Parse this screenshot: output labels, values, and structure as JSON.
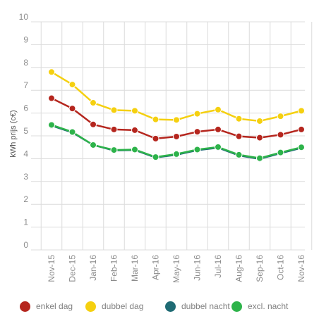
{
  "chart_data": {
    "type": "line",
    "title": "",
    "xlabel": "",
    "ylabel": "kWh prijs (c€)",
    "ylim": [
      0,
      10
    ],
    "yticks": [
      0,
      1,
      2,
      3,
      4,
      5,
      6,
      7,
      8,
      9,
      10
    ],
    "grid": true,
    "legend_position": "bottom",
    "categories": [
      "Nov-15",
      "Dec-15",
      "Jan-16",
      "Feb-16",
      "Mar-16",
      "Apr-16",
      "May-16",
      "Jun-16",
      "Jul-16",
      "Aug-16",
      "Sep-16",
      "Oct-16",
      "Nov-16"
    ],
    "series": [
      {
        "name": "enkel dag",
        "color": "#b5261e",
        "values": [
          6.65,
          6.2,
          5.5,
          5.28,
          5.25,
          4.88,
          4.97,
          5.18,
          5.28,
          4.98,
          4.92,
          5.05,
          5.28
        ]
      },
      {
        "name": "dubbel dag",
        "color": "#f5d010",
        "values": [
          7.8,
          7.25,
          6.45,
          6.13,
          6.1,
          5.72,
          5.7,
          5.97,
          6.15,
          5.75,
          5.65,
          5.86,
          6.1
        ]
      },
      {
        "name": "dubbel nacht",
        "color": "#1f6b74",
        "values": [
          5.45,
          5.15,
          4.6,
          4.36,
          4.38,
          4.05,
          4.17,
          4.37,
          4.48,
          4.14,
          3.99,
          4.24,
          4.47
        ]
      },
      {
        "name": "excl. nacht",
        "color": "#2db34a",
        "values": [
          5.48,
          5.17,
          4.6,
          4.38,
          4.4,
          4.07,
          4.2,
          4.4,
          4.51,
          4.17,
          4.02,
          4.27,
          4.5
        ]
      }
    ]
  }
}
